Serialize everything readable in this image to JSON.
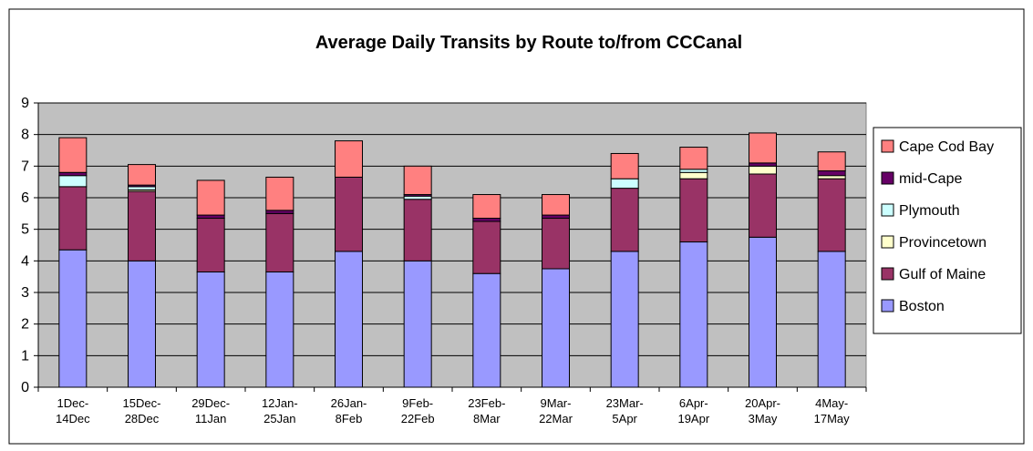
{
  "chart_data": {
    "type": "stacked_bar",
    "title": "Average Daily Transits by Route to/from CCCanal",
    "categories": [
      "1Dec-14Dec",
      "15Dec-28Dec",
      "29Dec-11Jan",
      "12Jan-25Jan",
      "26Jan-8Feb",
      "9Feb-22Feb",
      "23Feb-8Mar",
      "9Mar-22Mar",
      "23Mar-5Apr",
      "6Apr-19Apr",
      "20Apr-3May",
      "4May-17May"
    ],
    "series": [
      {
        "name": "Boston",
        "color": "#9999ff",
        "values": [
          4.35,
          4.0,
          3.65,
          3.65,
          4.3,
          4.0,
          3.6,
          3.75,
          4.3,
          4.6,
          4.75,
          4.3
        ]
      },
      {
        "name": "Gulf of Maine",
        "color": "#993366",
        "values": [
          2.0,
          2.2,
          1.7,
          1.85,
          2.35,
          1.95,
          1.65,
          1.6,
          2.0,
          2.0,
          2.0,
          2.3
        ]
      },
      {
        "name": "Provincetown",
        "color": "#ffffcc",
        "values": [
          0.0,
          0.05,
          0.0,
          0.0,
          0.0,
          0.0,
          0.0,
          0.0,
          0.0,
          0.2,
          0.25,
          0.1
        ]
      },
      {
        "name": "Plymouth",
        "color": "#ccffff",
        "values": [
          0.35,
          0.1,
          0.0,
          0.0,
          0.0,
          0.1,
          0.0,
          0.0,
          0.3,
          0.1,
          0.0,
          0.0
        ]
      },
      {
        "name": "mid-Cape",
        "color": "#660066",
        "values": [
          0.1,
          0.05,
          0.1,
          0.1,
          0.0,
          0.05,
          0.1,
          0.1,
          0.0,
          0.0,
          0.1,
          0.15
        ]
      },
      {
        "name": "Cape Cod Bay",
        "color": "#ff8080",
        "values": [
          1.1,
          0.65,
          1.1,
          1.05,
          1.15,
          0.9,
          0.75,
          0.65,
          0.8,
          0.7,
          0.95,
          0.6
        ]
      }
    ],
    "ylim": [
      0,
      9
    ],
    "yticks": [
      0,
      1,
      2,
      3,
      4,
      5,
      6,
      7,
      8,
      9
    ],
    "grid": true,
    "legend": "right"
  }
}
